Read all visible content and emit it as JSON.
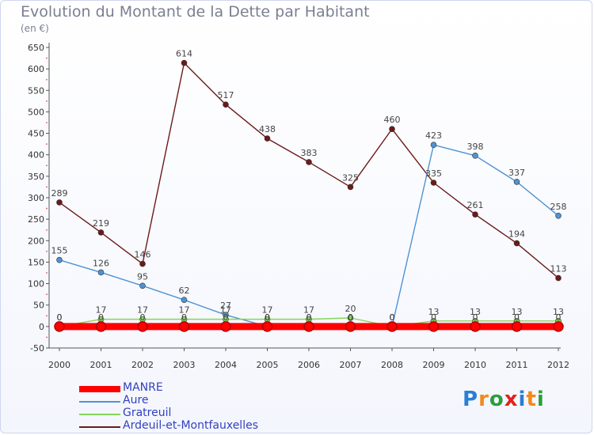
{
  "title": "Evolution du Montant de la Dette par Habitant",
  "subtitle": "(en €)",
  "logo": {
    "text": "Proxiti",
    "colors": [
      "#2a7fd4",
      "#f08a1c",
      "#2a9e3c",
      "#e2211c",
      "#2a7fd4",
      "#f08a1c",
      "#2a9e3c"
    ]
  },
  "chart_data": {
    "type": "line",
    "x": [
      "2000",
      "2001",
      "2002",
      "2003",
      "2004",
      "2005",
      "2006",
      "2007",
      "2008",
      "2009",
      "2010",
      "2011",
      "2012"
    ],
    "ylim": [
      -50,
      650
    ],
    "yticks": [
      -50,
      0,
      50,
      100,
      150,
      200,
      250,
      300,
      350,
      400,
      450,
      500,
      550,
      600,
      650
    ],
    "grid": false,
    "legend_position": "bottom-left",
    "series": [
      {
        "name": "MANRE",
        "color": "#ff0000",
        "values": [
          0,
          0,
          0,
          0,
          0,
          0,
          0,
          0,
          0,
          0,
          0,
          0,
          0
        ],
        "labels": [
          "0",
          "0",
          "0",
          "0",
          "0",
          "0",
          "0",
          "0",
          "0",
          "0",
          "0",
          "0",
          "0"
        ]
      },
      {
        "name": "Aure",
        "color": "#4f93d2",
        "values": [
          155,
          126,
          95,
          62,
          27,
          0,
          0,
          0,
          0,
          423,
          398,
          337,
          258
        ],
        "labels": [
          "155",
          "126",
          "95",
          "62",
          "27",
          "0",
          "0",
          "0",
          "0",
          "423",
          "398",
          "337",
          "258"
        ]
      },
      {
        "name": "Gratreuil",
        "color": "#86d35a",
        "values": [
          0,
          17,
          17,
          17,
          17,
          17,
          17,
          20,
          0,
          13,
          13,
          13,
          13
        ],
        "labels": [
          "0",
          "17",
          "17",
          "17",
          "17",
          "17",
          "17",
          "20",
          "0",
          "13",
          "13",
          "13",
          "13"
        ]
      },
      {
        "name": "Ardeuil-et-Montfauxelles",
        "color": "#6b1a1a",
        "values": [
          289,
          219,
          146,
          614,
          517,
          438,
          383,
          325,
          460,
          335,
          261,
          194,
          113
        ],
        "labels": [
          "289",
          "219",
          "146",
          "614",
          "517",
          "438",
          "383",
          "325",
          "460",
          "335",
          "261",
          "194",
          "113"
        ]
      }
    ]
  }
}
